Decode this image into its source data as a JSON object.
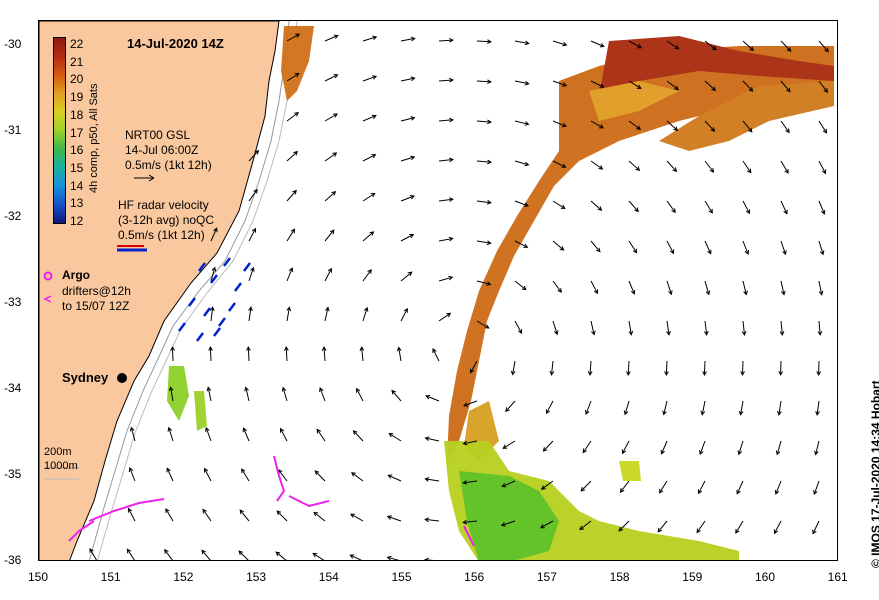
{
  "title": "14-Jul-2020 14Z",
  "colorbar": {
    "labels": [
      "22",
      "21",
      "20",
      "19",
      "18",
      "17",
      "16",
      "15",
      "14",
      "13",
      "12"
    ],
    "title": "4h comp, p50, All Sats"
  },
  "legend": {
    "gsl_line1": "NRT00 GSL",
    "gsl_line2": "14-Jul 06:00Z",
    "gsl_line3": "0.5m/s (1kt 12h)",
    "hf_line1": "HF radar velocity",
    "hf_line2": "(3-12h avg) noQC",
    "hf_line3": "0.5m/s (1kt 12h)",
    "argo_label": "Argo",
    "drifters_line1": "drifters@12h",
    "drifters_line2": "to 15/07 12Z",
    "isobath_200": "200m",
    "isobath_1000": "1000m"
  },
  "city": "Sydney",
  "credit": "© IMOS 17-Jul-2020 14:34 Hobart",
  "x_ticks": [
    "150",
    "151",
    "152",
    "153",
    "154",
    "155",
    "156",
    "157",
    "158",
    "159",
    "160",
    "161"
  ],
  "y_ticks": [
    "-30",
    "-31",
    "-32",
    "-33",
    "-34",
    "-35",
    "-36"
  ],
  "colors": {
    "land": "#fac89e",
    "arrow": "#000000",
    "hf_arrow": "#0022cc",
    "drifter": "#ee22ee",
    "warm": "#b04010",
    "cool": "#66cc22"
  }
}
